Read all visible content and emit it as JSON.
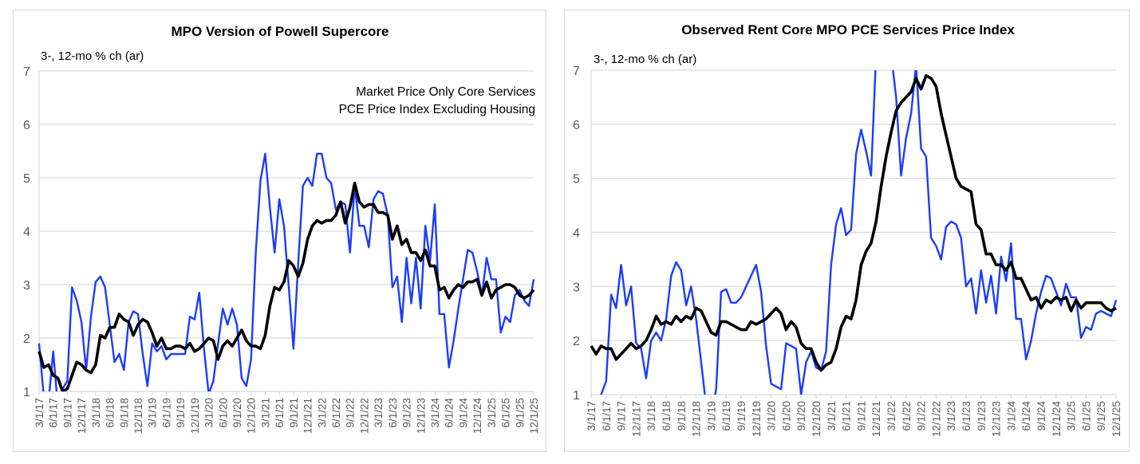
{
  "chart_data": [
    {
      "type": "line",
      "title": "MPO Version of Powell Supercore",
      "ylabel": "3-, 12-mo % ch (ar)",
      "xlabel": "",
      "ylim": [
        1,
        7
      ],
      "yticks": [
        1,
        2,
        3,
        4,
        5,
        6,
        7
      ],
      "grid": true,
      "annotation": [
        "Market Price Only Core Services",
        "PCE Price Index Excluding Housing"
      ],
      "annotation_placement": "top-right",
      "x_start": "3/1/17",
      "x_end": "12/1/25",
      "xtick_labels": [
        "3/1/17",
        "6/1/17",
        "9/1/17",
        "12/1/17",
        "3/1/18",
        "6/1/18",
        "9/1/18",
        "12/1/18",
        "3/1/19",
        "6/1/19",
        "9/1/19",
        "12/1/19",
        "3/1/20",
        "6/1/20",
        "9/1/20",
        "12/1/20",
        "3/1/21",
        "6/1/21",
        "9/1/21",
        "12/1/21",
        "3/1/22",
        "6/1/22",
        "9/1/22",
        "12/1/22",
        "3/1/23",
        "6/1/23",
        "9/1/23",
        "12/1/23",
        "3/1/24",
        "6/1/24",
        "9/1/24",
        "12/1/24",
        "3/1/25",
        "6/1/25",
        "9/1/25",
        "12/1/25"
      ],
      "series": [
        {
          "name": "3-mo % ch (ar)",
          "color": "#1a3cff",
          "values": [
            1.9,
            0.9,
            0.8,
            1.75,
            0.7,
            1.05,
            1.2,
            2.95,
            2.7,
            2.3,
            1.4,
            2.4,
            3.05,
            3.15,
            2.95,
            2.25,
            1.55,
            1.7,
            1.4,
            2.3,
            2.5,
            2.45,
            1.7,
            1.1,
            1.9,
            1.75,
            1.85,
            1.6,
            1.7,
            1.7,
            1.7,
            1.7,
            2.4,
            2.35,
            2.85,
            1.8,
            0.95,
            1.2,
            1.9,
            2.55,
            2.25,
            2.55,
            2.25,
            1.25,
            1.1,
            1.6,
            3.6,
            4.95,
            5.45,
            4.45,
            3.6,
            4.6,
            4.1,
            2.95,
            1.8,
            3.4,
            4.85,
            5.0,
            4.85,
            5.45,
            5.45,
            5.0,
            4.9,
            4.4,
            4.55,
            4.5,
            3.6,
            4.85,
            4.1,
            4.1,
            3.7,
            4.6,
            4.75,
            4.7,
            4.3,
            2.95,
            3.15,
            2.3,
            3.5,
            2.65,
            3.5,
            2.55,
            4.1,
            3.45,
            4.5,
            2.45,
            2.45,
            1.45,
            1.95,
            2.55,
            3.1,
            3.65,
            3.6,
            3.25,
            2.8,
            3.5,
            3.1,
            3.1,
            2.1,
            2.4,
            2.3,
            2.8,
            2.9,
            2.7,
            2.6,
            3.1
          ]
        },
        {
          "name": "12-mo % ch",
          "color": "#000000",
          "values": [
            1.75,
            1.45,
            1.5,
            1.3,
            1.25,
            1.0,
            1.05,
            1.3,
            1.55,
            1.5,
            1.4,
            1.35,
            1.5,
            2.05,
            2.0,
            2.2,
            2.2,
            2.45,
            2.35,
            2.3,
            2.05,
            2.25,
            2.35,
            2.3,
            2.1,
            1.85,
            2.0,
            1.8,
            1.8,
            1.85,
            1.85,
            1.8,
            1.9,
            1.75,
            1.8,
            1.9,
            2.0,
            1.95,
            1.6,
            1.85,
            1.95,
            1.85,
            2.0,
            2.15,
            1.95,
            1.85,
            1.85,
            1.8,
            2.05,
            2.6,
            2.95,
            2.9,
            3.05,
            3.45,
            3.35,
            3.15,
            3.4,
            3.85,
            4.1,
            4.2,
            4.15,
            4.2,
            4.2,
            4.3,
            4.55,
            4.15,
            4.45,
            4.9,
            4.55,
            4.45,
            4.5,
            4.5,
            4.35,
            4.35,
            4.3,
            3.85,
            4.1,
            3.75,
            3.85,
            3.6,
            3.6,
            3.45,
            3.65,
            3.35,
            3.35,
            2.9,
            2.95,
            2.75,
            2.9,
            3.0,
            2.95,
            3.05,
            3.05,
            3.1,
            2.8,
            3.05,
            2.75,
            2.9,
            2.95,
            3.0,
            3.0,
            2.95,
            2.8,
            2.75,
            2.8,
            2.9
          ]
        }
      ]
    },
    {
      "type": "line",
      "title": "Observed Rent Core MPO PCE Services Price Index",
      "ylabel": "3-, 12-mo % ch (ar)",
      "xlabel": "",
      "ylim": [
        1,
        7
      ],
      "yticks": [
        1,
        2,
        3,
        4,
        5,
        6,
        7
      ],
      "grid": true,
      "x_start": "3/1/17",
      "x_end": "12/1/25",
      "xtick_labels": [
        "3/1/17",
        "6/1/17",
        "9/1/17",
        "12/1/17",
        "3/1/18",
        "6/1/18",
        "9/1/18",
        "12/1/18",
        "3/1/19",
        "6/1/19",
        "9/1/19",
        "12/1/19",
        "3/1/20",
        "6/1/20",
        "9/1/20",
        "12/1/20",
        "3/1/21",
        "6/1/21",
        "9/1/21",
        "12/1/21",
        "3/1/22",
        "6/1/22",
        "9/1/22",
        "12/1/22",
        "3/1/23",
        "6/1/23",
        "9/1/23",
        "12/1/23",
        "3/1/24",
        "6/1/24",
        "9/1/24",
        "12/1/24",
        "3/1/25",
        "6/1/25",
        "9/1/25",
        "12/1/25"
      ],
      "series": [
        {
          "name": "3-mo % ch (ar)",
          "color": "#1a3cff",
          "values": [
            0.5,
            0.7,
            1.0,
            1.25,
            2.85,
            2.6,
            3.4,
            2.65,
            3.0,
            1.95,
            1.85,
            1.3,
            2.0,
            2.15,
            2.0,
            2.4,
            3.2,
            3.45,
            3.3,
            2.65,
            3.0,
            2.4,
            1.6,
            0.8,
            0.6,
            1.1,
            2.9,
            2.95,
            2.7,
            2.7,
            2.8,
            3.0,
            3.2,
            3.4,
            2.9,
            1.9,
            1.2,
            1.15,
            1.1,
            1.95,
            1.9,
            1.85,
            1.0,
            1.6,
            1.8,
            1.5,
            1.45,
            1.8,
            3.4,
            4.15,
            4.45,
            3.95,
            4.05,
            5.45,
            5.9,
            5.5,
            5.05,
            7.3,
            7.3,
            7.3,
            7.3,
            6.5,
            5.05,
            5.75,
            6.2,
            7.1,
            5.55,
            5.4,
            3.9,
            3.75,
            3.5,
            4.1,
            4.2,
            4.15,
            3.9,
            3.0,
            3.15,
            2.5,
            3.3,
            2.7,
            3.2,
            2.5,
            3.55,
            3.1,
            3.8,
            2.4,
            2.4,
            1.65,
            2.0,
            2.5,
            2.9,
            3.2,
            3.15,
            2.9,
            2.65,
            3.05,
            2.8,
            2.8,
            2.05,
            2.25,
            2.2,
            2.5,
            2.55,
            2.5,
            2.45,
            2.75
          ]
        },
        {
          "name": "12-mo % ch",
          "color": "#000000",
          "values": [
            1.9,
            1.75,
            1.9,
            1.85,
            1.85,
            1.65,
            1.75,
            1.85,
            1.95,
            1.85,
            1.9,
            2.0,
            2.2,
            2.45,
            2.3,
            2.35,
            2.3,
            2.45,
            2.35,
            2.45,
            2.4,
            2.6,
            2.55,
            2.35,
            2.15,
            2.1,
            2.35,
            2.35,
            2.3,
            2.25,
            2.2,
            2.2,
            2.35,
            2.3,
            2.35,
            2.4,
            2.5,
            2.6,
            2.5,
            2.2,
            2.35,
            2.25,
            1.95,
            1.85,
            1.85,
            1.6,
            1.45,
            1.55,
            1.6,
            1.85,
            2.25,
            2.45,
            2.4,
            2.75,
            3.4,
            3.65,
            3.8,
            4.2,
            4.85,
            5.4,
            5.85,
            6.25,
            6.4,
            6.5,
            6.6,
            6.85,
            6.65,
            6.9,
            6.85,
            6.7,
            6.2,
            5.8,
            5.4,
            5.0,
            4.85,
            4.8,
            4.75,
            4.15,
            4.05,
            3.6,
            3.6,
            3.4,
            3.4,
            3.3,
            3.45,
            3.15,
            3.15,
            2.95,
            2.75,
            2.8,
            2.6,
            2.75,
            2.7,
            2.8,
            2.75,
            2.8,
            2.55,
            2.75,
            2.6,
            2.7,
            2.7,
            2.7,
            2.7,
            2.6,
            2.55,
            2.6
          ]
        }
      ]
    }
  ]
}
